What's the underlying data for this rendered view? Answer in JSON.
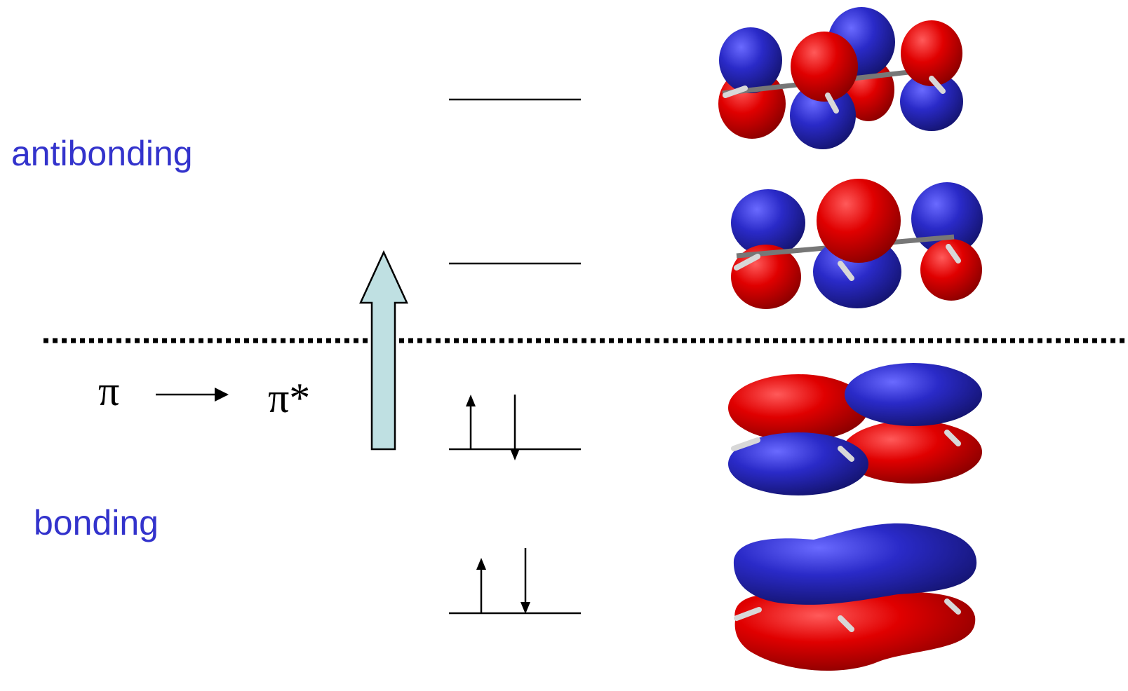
{
  "labels": {
    "antibonding": "antibonding",
    "bonding": "bonding",
    "pi": "π",
    "pi_star": "π*"
  },
  "colors": {
    "label": "#3333cc",
    "lobe_positive": "#e00000",
    "lobe_negative": "#2a2ac8",
    "excitation_arrow_fill": "#bfe0e2",
    "bond": "#c8c8c8"
  },
  "levels": [
    {
      "order": 4,
      "occupancy": 0
    },
    {
      "order": 3,
      "occupancy": 0
    },
    {
      "order": 2,
      "occupancy": 2
    },
    {
      "order": 1,
      "occupancy": 2
    }
  ],
  "icons": [
    "orbital-pi4-icon",
    "orbital-pi3-icon",
    "orbital-pi2-icon",
    "orbital-pi1-icon"
  ]
}
